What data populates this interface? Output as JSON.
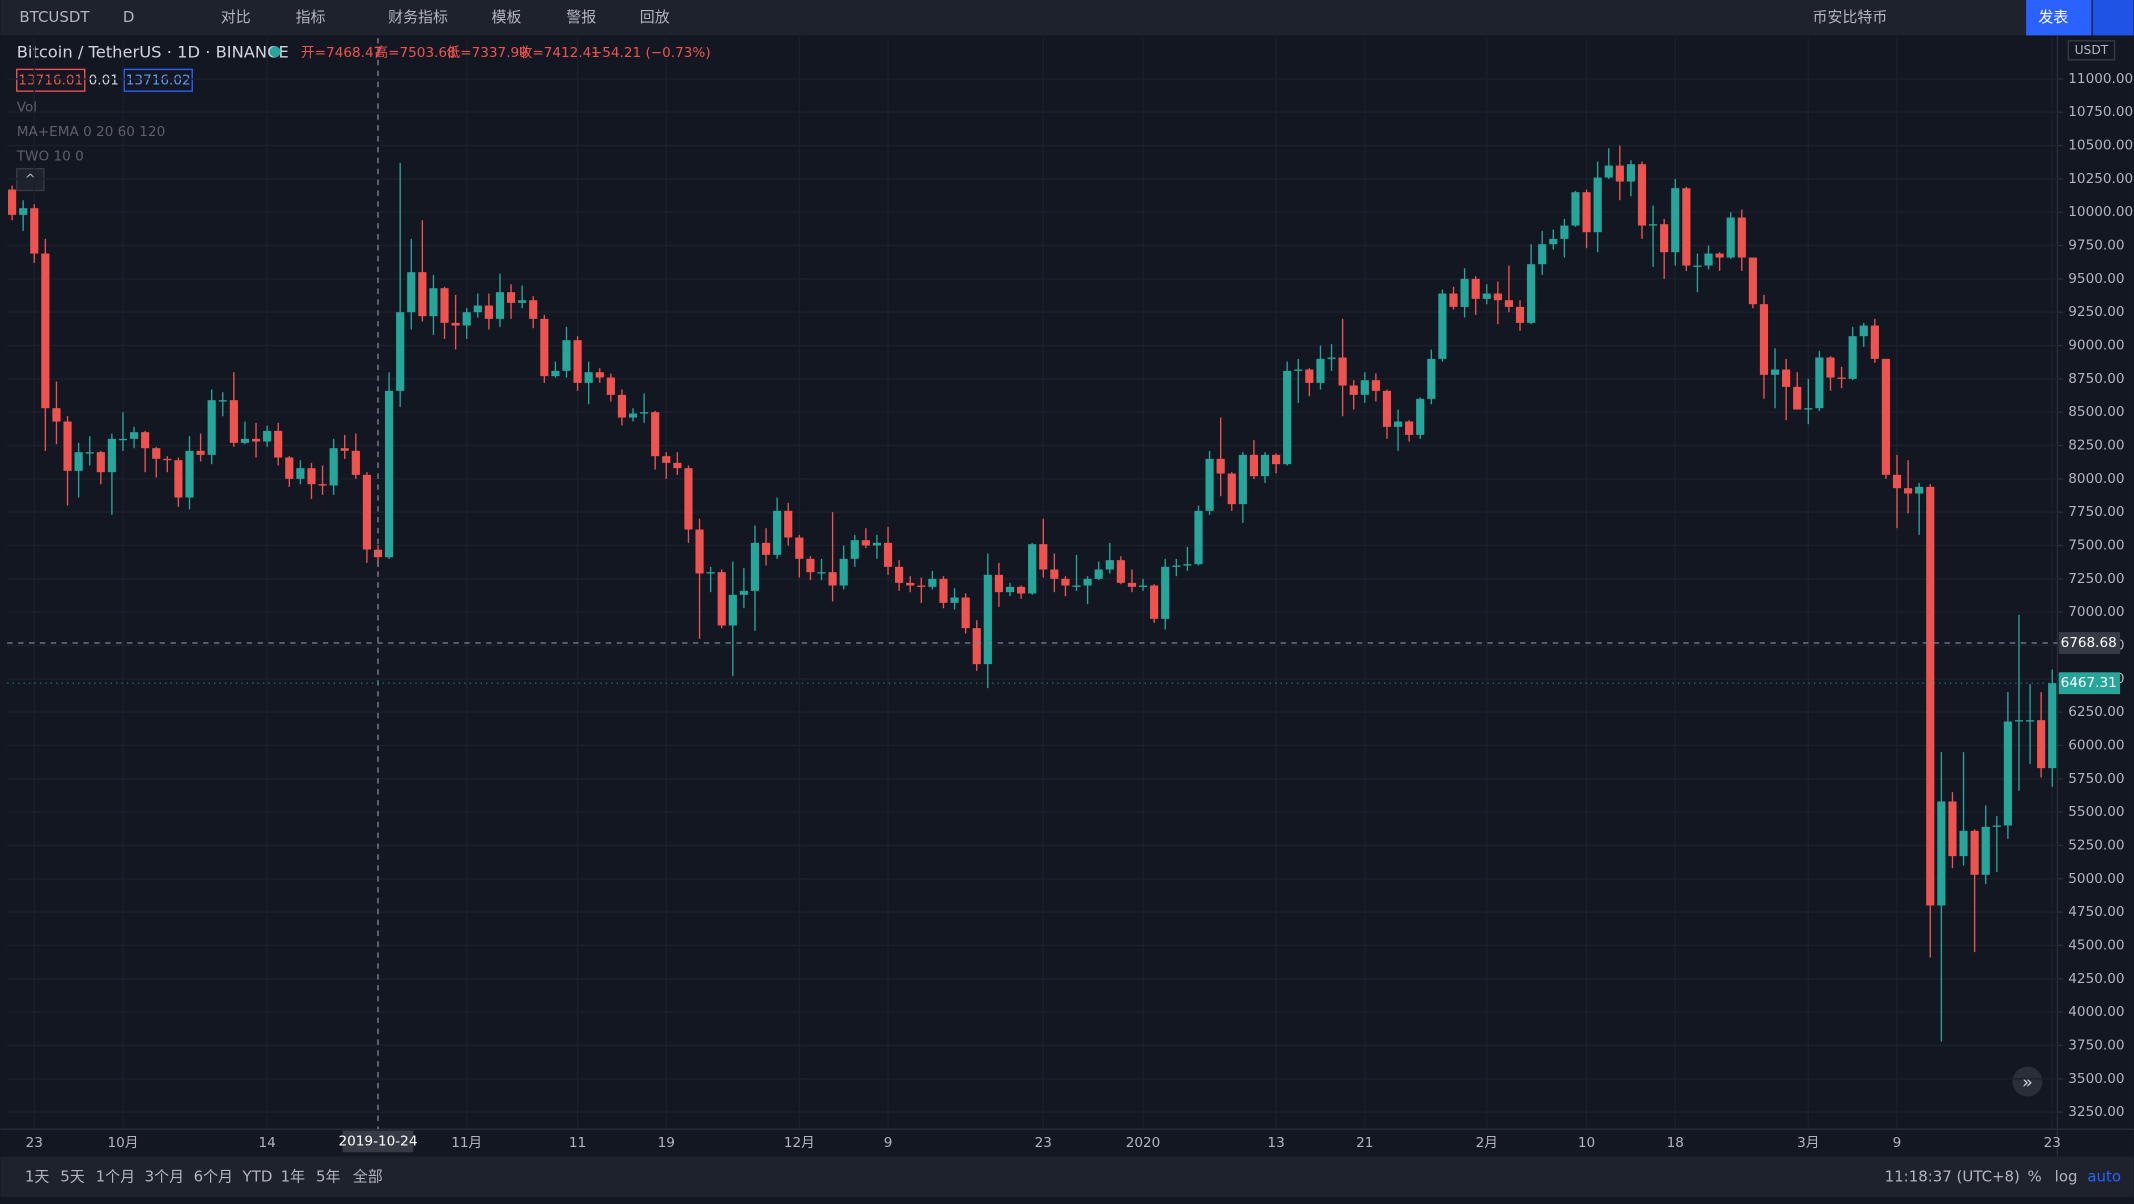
{
  "toolbar": [
    "BTCUSDT",
    "D",
    "对比",
    "指标",
    "财务指标",
    "模板",
    "警报",
    "回放",
    "币安比特币",
    "发表"
  ],
  "bottom_bar": {
    "ranges": [
      "1天",
      "5天",
      "1个月",
      "3个月",
      "6个月",
      "YTD",
      "1年",
      "5年",
      "全部"
    ],
    "clock": "11:18:37 (UTC+8)",
    "options": [
      "%",
      "log",
      "auto"
    ]
  },
  "legend": {
    "symbol": "Bitcoin / TetherUS · 1D · BINANCE",
    "open": "开=7468.47",
    "high": "高=7503.68",
    "low": "低=7337.99",
    "close": "收=7412.41",
    "change": "−54.21 (−0.73%)",
    "bid": "13716.01",
    "spread": "0.01",
    "ask": "13716.02",
    "indicators": [
      "Vol",
      "MA+EMA 0 20 60 120",
      "TWO 10 0"
    ]
  },
  "chart_data": {
    "type": "candlestick",
    "currency": "USDT",
    "up_color": "#26a69a",
    "down_color": "#ef5350",
    "grid": true,
    "crosshair": {
      "price": 6768.68,
      "date": "2019-10-24"
    },
    "last_price": 6467.31,
    "ylim": [
      3122,
      11306
    ],
    "yticks": [
      {
        "value": 3250,
        "label": "3250.00"
      },
      {
        "value": 3500,
        "label": "3500.00"
      },
      {
        "value": 3750,
        "label": "3750.00"
      },
      {
        "value": 4000,
        "label": "4000.00"
      },
      {
        "value": 4250,
        "label": "4250.00"
      },
      {
        "value": 4500,
        "label": "4500.00"
      },
      {
        "value": 4750,
        "label": "4750.00"
      },
      {
        "value": 5000,
        "label": "5000.00"
      },
      {
        "value": 5250,
        "label": "5250.00"
      },
      {
        "value": 5500,
        "label": "5500.00"
      },
      {
        "value": 5750,
        "label": "5750.00"
      },
      {
        "value": 6000,
        "label": "6000.00"
      },
      {
        "value": 6250,
        "label": "6250.00"
      },
      {
        "value": 6500,
        "label": "6500.00"
      },
      {
        "value": 6750,
        "label": "6750.00"
      },
      {
        "value": 7000,
        "label": "7000.00"
      },
      {
        "value": 7250,
        "label": "7250.00"
      },
      {
        "value": 7500,
        "label": "7500.00"
      },
      {
        "value": 7750,
        "label": "7750.00"
      },
      {
        "value": 8000,
        "label": "8000.00"
      },
      {
        "value": 8250,
        "label": "8250.00"
      },
      {
        "value": 8500,
        "label": "8500.00"
      },
      {
        "value": 8750,
        "label": "8750.00"
      },
      {
        "value": 9000,
        "label": "9000.00"
      },
      {
        "value": 9250,
        "label": "9250.00"
      },
      {
        "value": 9500,
        "label": "9500.00"
      },
      {
        "value": 9750,
        "label": "9750.00"
      },
      {
        "value": 10000,
        "label": "10000.00"
      },
      {
        "value": 10250,
        "label": "10250.00"
      },
      {
        "value": 10500,
        "label": "10500.00"
      },
      {
        "value": 10750,
        "label": "10750.00"
      },
      {
        "value": 11000,
        "label": "11000.00"
      }
    ],
    "categories": [
      null,
      null,
      "23",
      null,
      null,
      null,
      null,
      null,
      null,
      null,
      "10月",
      null,
      null,
      null,
      null,
      null,
      null,
      null,
      null,
      null,
      null,
      null,
      null,
      "14",
      null,
      null,
      null,
      null,
      null,
      null,
      null,
      null,
      null,
      null,
      null,
      null,
      null,
      null,
      null,
      null,
      null,
      "11月",
      null,
      null,
      null,
      null,
      null,
      null,
      null,
      null,
      null,
      "11",
      null,
      null,
      null,
      null,
      null,
      null,
      null,
      "19",
      null,
      null,
      null,
      null,
      null,
      null,
      null,
      null,
      null,
      null,
      null,
      "12月",
      null,
      null,
      null,
      null,
      null,
      null,
      null,
      "9",
      null,
      null,
      null,
      null,
      null,
      null,
      null,
      null,
      null,
      null,
      null,
      null,
      null,
      "23",
      null,
      null,
      null,
      null,
      null,
      null,
      null,
      null,
      "2020",
      null,
      null,
      null,
      null,
      null,
      null,
      null,
      null,
      null,
      null,
      null,
      "13",
      null,
      null,
      null,
      null,
      null,
      null,
      null,
      "21",
      null,
      null,
      null,
      null,
      null,
      null,
      null,
      null,
      null,
      null,
      "2月",
      null,
      null,
      null,
      null,
      null,
      null,
      null,
      null,
      "10",
      null,
      null,
      null,
      null,
      null,
      null,
      null,
      "18",
      null,
      null,
      null,
      null,
      null,
      null,
      null,
      null,
      null,
      null,
      null,
      "3月",
      null,
      null,
      null,
      null,
      null,
      null,
      null,
      "9",
      null,
      null,
      null,
      null,
      null,
      null,
      null,
      null,
      null,
      null,
      null,
      null,
      null,
      "23"
    ],
    "candles": [
      [
        10170,
        10200,
        9940,
        9980
      ],
      [
        9980,
        10090,
        9860,
        10030
      ],
      [
        10030,
        10060,
        9620,
        9690
      ],
      [
        9690,
        9800,
        8210,
        8530
      ],
      [
        8530,
        8730,
        8260,
        8430
      ],
      [
        8430,
        8470,
        7800,
        8060
      ],
      [
        8060,
        8270,
        7860,
        8200
      ],
      [
        8200,
        8320,
        8100,
        8200
      ],
      [
        8200,
        8210,
        7960,
        8050
      ],
      [
        8050,
        8340,
        7730,
        8300
      ],
      [
        8300,
        8500,
        8210,
        8300
      ],
      [
        8300,
        8390,
        8230,
        8350
      ],
      [
        8350,
        8360,
        8050,
        8230
      ],
      [
        8230,
        8240,
        8010,
        8150
      ],
      [
        8150,
        8170,
        8050,
        8140
      ],
      [
        8140,
        8160,
        7790,
        7860
      ],
      [
        7860,
        8320,
        7770,
        8210
      ],
      [
        8210,
        8340,
        8130,
        8180
      ],
      [
        8180,
        8670,
        8110,
        8590
      ],
      [
        8590,
        8650,
        8470,
        8590
      ],
      [
        8590,
        8800,
        8240,
        8270
      ],
      [
        8270,
        8430,
        8260,
        8300
      ],
      [
        8300,
        8420,
        8160,
        8280
      ],
      [
        8280,
        8400,
        8240,
        8360
      ],
      [
        8360,
        8420,
        8100,
        8160
      ],
      [
        8160,
        8170,
        7940,
        8000
      ],
      [
        8000,
        8140,
        7960,
        8080
      ],
      [
        8080,
        8120,
        7850,
        7960
      ],
      [
        7960,
        8100,
        7880,
        7950
      ],
      [
        7950,
        8300,
        7880,
        8230
      ],
      [
        8230,
        8330,
        8150,
        8210
      ],
      [
        8210,
        8340,
        8000,
        8030
      ],
      [
        8030,
        8050,
        7370,
        7470
      ],
      [
        7468.47,
        7503.68,
        7337.99,
        7412.41
      ],
      [
        7412,
        8800,
        7400,
        8660
      ],
      [
        8660,
        10370,
        8540,
        9250
      ],
      [
        9250,
        9800,
        9120,
        9550
      ],
      [
        9550,
        9940,
        9180,
        9220
      ],
      [
        9220,
        9530,
        9080,
        9430
      ],
      [
        9430,
        9440,
        9050,
        9170
      ],
      [
        9170,
        9380,
        8970,
        9150
      ],
      [
        9150,
        9280,
        9050,
        9250
      ],
      [
        9250,
        9390,
        9210,
        9300
      ],
      [
        9300,
        9390,
        9120,
        9200
      ],
      [
        9200,
        9540,
        9140,
        9400
      ],
      [
        9400,
        9460,
        9200,
        9320
      ],
      [
        9320,
        9450,
        9280,
        9340
      ],
      [
        9340,
        9370,
        9130,
        9200
      ],
      [
        9200,
        9230,
        8720,
        8770
      ],
      [
        8770,
        8880,
        8760,
        8810
      ],
      [
        8810,
        9140,
        8760,
        9040
      ],
      [
        9040,
        9070,
        8660,
        8720
      ],
      [
        8720,
        8880,
        8560,
        8800
      ],
      [
        8800,
        8830,
        8720,
        8760
      ],
      [
        8760,
        8790,
        8580,
        8630
      ],
      [
        8630,
        8670,
        8400,
        8460
      ],
      [
        8460,
        8530,
        8430,
        8490
      ],
      [
        8490,
        8640,
        8420,
        8500
      ],
      [
        8500,
        8510,
        8070,
        8170
      ],
      [
        8170,
        8200,
        8000,
        8120
      ],
      [
        8120,
        8200,
        8030,
        8080
      ],
      [
        8080,
        8100,
        7520,
        7620
      ],
      [
        7620,
        7700,
        6800,
        7290
      ],
      [
        7290,
        7340,
        7150,
        7300
      ],
      [
        7300,
        7320,
        6880,
        6900
      ],
      [
        6900,
        7380,
        6520,
        7130
      ],
      [
        7130,
        7330,
        7030,
        7160
      ],
      [
        7160,
        7650,
        6860,
        7520
      ],
      [
        7520,
        7630,
        7350,
        7430
      ],
      [
        7430,
        7860,
        7400,
        7760
      ],
      [
        7760,
        7820,
        7500,
        7560
      ],
      [
        7560,
        7580,
        7260,
        7400
      ],
      [
        7400,
        7420,
        7240,
        7300
      ],
      [
        7300,
        7400,
        7240,
        7300
      ],
      [
        7300,
        7750,
        7080,
        7200
      ],
      [
        7200,
        7500,
        7170,
        7400
      ],
      [
        7400,
        7580,
        7340,
        7540
      ],
      [
        7540,
        7630,
        7480,
        7500
      ],
      [
        7500,
        7580,
        7400,
        7520
      ],
      [
        7520,
        7640,
        7280,
        7340
      ],
      [
        7340,
        7390,
        7160,
        7220
      ],
      [
        7220,
        7270,
        7150,
        7200
      ],
      [
        7200,
        7260,
        7070,
        7190
      ],
      [
        7190,
        7310,
        7170,
        7250
      ],
      [
        7250,
        7270,
        7030,
        7070
      ],
      [
        7070,
        7180,
        7020,
        7110
      ],
      [
        7110,
        7140,
        6840,
        6880
      ],
      [
        6880,
        6940,
        6560,
        6610
      ],
      [
        6610,
        7440,
        6430,
        7280
      ],
      [
        7280,
        7370,
        7040,
        7150
      ],
      [
        7150,
        7220,
        7120,
        7190
      ],
      [
        7190,
        7200,
        7100,
        7140
      ],
      [
        7140,
        7520,
        7130,
        7510
      ],
      [
        7510,
        7700,
        7260,
        7320
      ],
      [
        7320,
        7440,
        7150,
        7250
      ],
      [
        7250,
        7270,
        7120,
        7200
      ],
      [
        7200,
        7430,
        7160,
        7200
      ],
      [
        7200,
        7270,
        7060,
        7250
      ],
      [
        7250,
        7380,
        7240,
        7320
      ],
      [
        7320,
        7520,
        7290,
        7390
      ],
      [
        7390,
        7420,
        7210,
        7220
      ],
      [
        7220,
        7320,
        7150,
        7190
      ],
      [
        7190,
        7250,
        7160,
        7200
      ],
      [
        7200,
        7210,
        6920,
        6950
      ],
      [
        6950,
        7400,
        6870,
        7340
      ],
      [
        7340,
        7400,
        7270,
        7350
      ],
      [
        7350,
        7490,
        7310,
        7360
      ],
      [
        7360,
        7800,
        7350,
        7760
      ],
      [
        7760,
        8210,
        7730,
        8150
      ],
      [
        8150,
        8460,
        7870,
        8040
      ],
      [
        8040,
        8050,
        7760,
        7810
      ],
      [
        7810,
        8200,
        7670,
        8180
      ],
      [
        8180,
        8290,
        8000,
        8020
      ],
      [
        8020,
        8200,
        7970,
        8180
      ],
      [
        8180,
        8190,
        8040,
        8110
      ],
      [
        8110,
        8880,
        8100,
        8810
      ],
      [
        8810,
        8900,
        8570,
        8820
      ],
      [
        8820,
        8830,
        8620,
        8720
      ],
      [
        8720,
        9000,
        8670,
        8900
      ],
      [
        8900,
        9010,
        8810,
        8910
      ],
      [
        8910,
        9200,
        8470,
        8700
      ],
      [
        8700,
        8740,
        8520,
        8630
      ],
      [
        8630,
        8800,
        8570,
        8740
      ],
      [
        8740,
        8790,
        8580,
        8660
      ],
      [
        8660,
        8670,
        8300,
        8390
      ],
      [
        8390,
        8520,
        8210,
        8430
      ],
      [
        8430,
        8440,
        8280,
        8330
      ],
      [
        8330,
        8610,
        8300,
        8600
      ],
      [
        8600,
        8970,
        8560,
        8900
      ],
      [
        8900,
        9420,
        8880,
        9390
      ],
      [
        9390,
        9440,
        9270,
        9290
      ],
      [
        9290,
        9580,
        9210,
        9500
      ],
      [
        9500,
        9520,
        9230,
        9350
      ],
      [
        9350,
        9460,
        9310,
        9390
      ],
      [
        9390,
        9480,
        9160,
        9340
      ],
      [
        9340,
        9600,
        9250,
        9290
      ],
      [
        9290,
        9340,
        9110,
        9170
      ],
      [
        9170,
        9760,
        9160,
        9610
      ],
      [
        9610,
        9860,
        9530,
        9760
      ],
      [
        9760,
        9870,
        9720,
        9800
      ],
      [
        9800,
        9950,
        9660,
        9900
      ],
      [
        9900,
        10160,
        9890,
        10150
      ],
      [
        10150,
        10170,
        9730,
        9850
      ],
      [
        9850,
        10380,
        9700,
        10260
      ],
      [
        10260,
        10480,
        10250,
        10350
      ],
      [
        10350,
        10500,
        10090,
        10230
      ],
      [
        10230,
        10390,
        10120,
        10360
      ],
      [
        10360,
        10380,
        9800,
        9900
      ],
      [
        9900,
        10050,
        9590,
        9910
      ],
      [
        9910,
        9950,
        9500,
        9700
      ],
      [
        9700,
        10250,
        9600,
        10180
      ],
      [
        10180,
        10190,
        9560,
        9600
      ],
      [
        9600,
        9690,
        9400,
        9600
      ],
      [
        9600,
        9750,
        9570,
        9690
      ],
      [
        9690,
        9700,
        9560,
        9660
      ],
      [
        9660,
        10000,
        9650,
        9960
      ],
      [
        9960,
        10020,
        9560,
        9660
      ],
      [
        9660,
        9660,
        9280,
        9310
      ],
      [
        9310,
        9380,
        8600,
        8780
      ],
      [
        8780,
        8980,
        8530,
        8820
      ],
      [
        8820,
        8900,
        8440,
        8690
      ],
      [
        8690,
        8800,
        8520,
        8520
      ],
      [
        8520,
        8750,
        8410,
        8530
      ],
      [
        8530,
        8960,
        8510,
        8910
      ],
      [
        8910,
        8920,
        8660,
        8760
      ],
      [
        8760,
        8840,
        8680,
        8750
      ],
      [
        8750,
        9140,
        8740,
        9070
      ],
      [
        9070,
        9170,
        8990,
        9150
      ],
      [
        9150,
        9200,
        8870,
        8900
      ],
      [
        8900,
        8900,
        8000,
        8030
      ],
      [
        8030,
        8180,
        7630,
        7930
      ],
      [
        7930,
        8140,
        7740,
        7890
      ],
      [
        7890,
        7970,
        7580,
        7940
      ],
      [
        7940,
        7960,
        4410,
        4800
      ],
      [
        4800,
        5950,
        3780,
        5580
      ],
      [
        5580,
        5650,
        5080,
        5170
      ],
      [
        5170,
        5950,
        5100,
        5360
      ],
      [
        5360,
        5370,
        4450,
        5030
      ],
      [
        5030,
        5550,
        4960,
        5390
      ],
      [
        5390,
        5470,
        5050,
        5400
      ],
      [
        5400,
        6400,
        5300,
        6180
      ],
      [
        6180,
        6980,
        5660,
        6190
      ],
      [
        6190,
        6460,
        5860,
        6190
      ],
      [
        6190,
        6400,
        5760,
        5830
      ],
      [
        5830,
        6570,
        5690,
        6467.31
      ]
    ]
  }
}
